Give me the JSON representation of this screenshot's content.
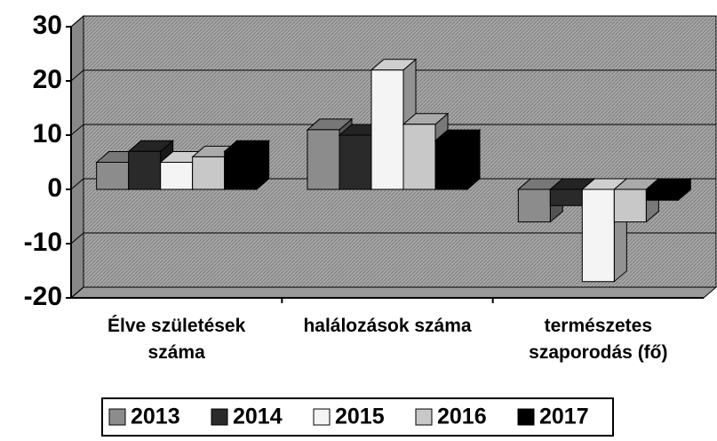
{
  "chart_data": {
    "type": "bar",
    "categories": [
      "Élve születések száma",
      "halálozások száma",
      "természetes szaporodás (fő)"
    ],
    "series": [
      {
        "name": "2013",
        "color": "#8c8c8c",
        "values": [
          5,
          11,
          -6
        ]
      },
      {
        "name": "2014",
        "color": "#2a2a2a",
        "values": [
          7,
          10,
          -3
        ]
      },
      {
        "name": "2015",
        "color": "#f4f4f4",
        "values": [
          5,
          22,
          -17
        ]
      },
      {
        "name": "2016",
        "color": "#c8c8c8",
        "values": [
          6,
          12,
          -6
        ]
      },
      {
        "name": "2017",
        "color": "#000000",
        "values": [
          7,
          9,
          -2
        ]
      }
    ],
    "ylim": [
      -20,
      30
    ],
    "yticks": [
      -20,
      -10,
      0,
      10,
      20,
      30
    ],
    "grid": true
  }
}
